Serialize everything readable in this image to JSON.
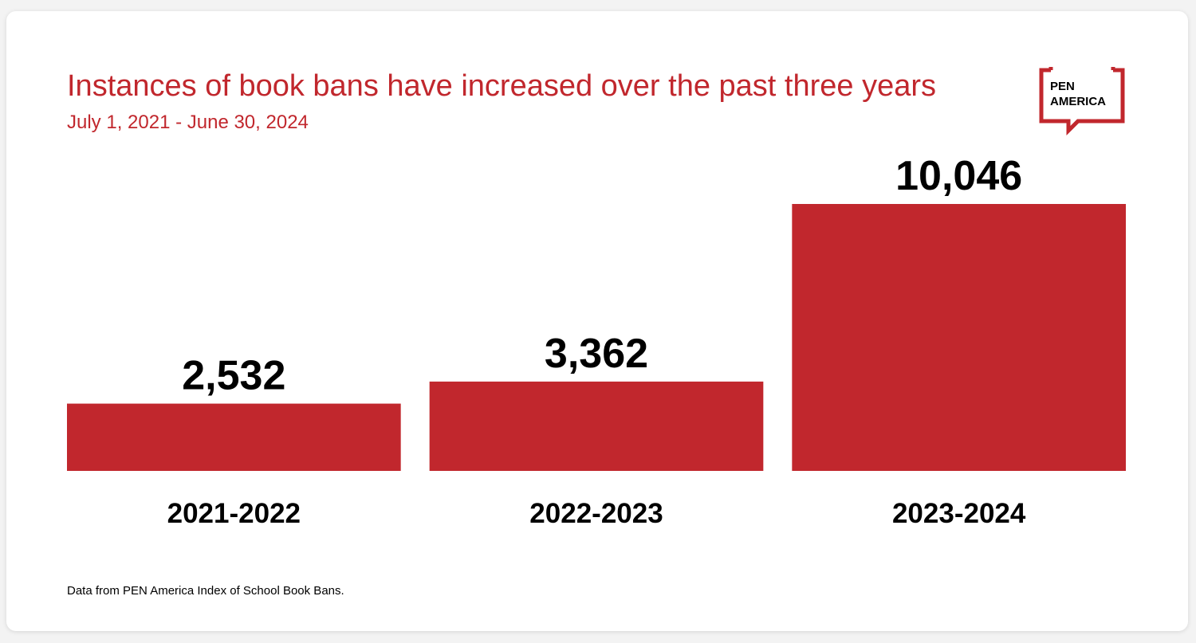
{
  "chart_data": {
    "type": "bar",
    "title": "Instances of book bans have increased over the past three years",
    "subtitle": "July 1, 2021 - June 30, 2024",
    "categories": [
      "2021-2022",
      "2022-2023",
      "2023-2024"
    ],
    "values": [
      2532,
      3362,
      10046
    ],
    "value_labels": [
      "2,532",
      "3,362",
      "10,046"
    ],
    "color": "#c1272d",
    "source": "Data from PEN America Index of School Book Bans."
  },
  "logo": {
    "lines": [
      "PEN",
      "AMERICA"
    ]
  }
}
